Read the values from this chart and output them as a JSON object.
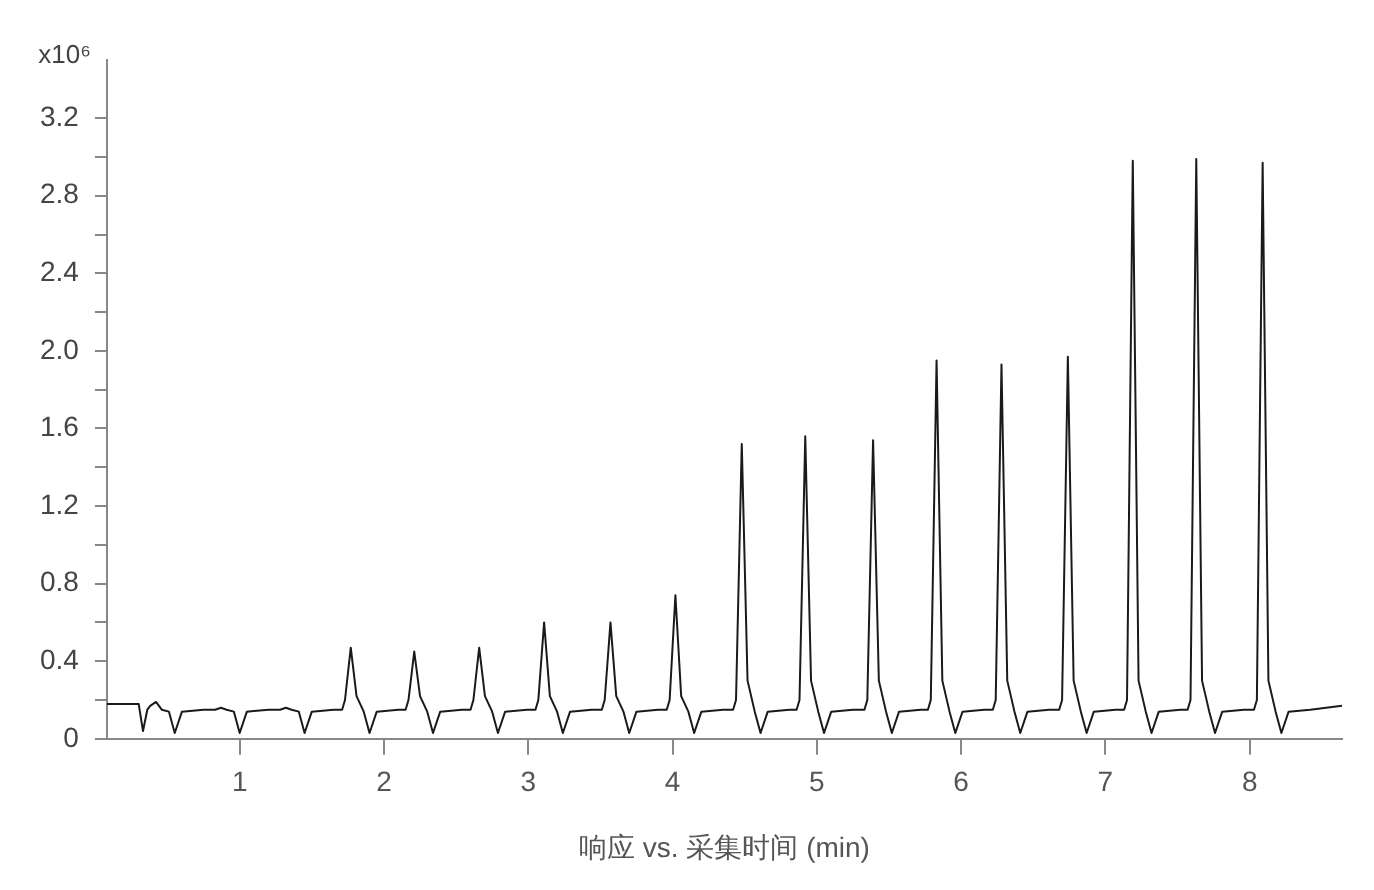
{
  "chart_data": {
    "type": "line",
    "xlabel": "响应 vs. 采集时间 (min)",
    "ylabel": "x10⁶",
    "xlim": [
      0.08,
      8.64
    ],
    "xticks": [
      1,
      2,
      3,
      4,
      5,
      6,
      7,
      8
    ],
    "ylim": [
      0,
      3.5
    ],
    "yticks": [
      0,
      {
        "value": 0.2,
        "label": null
      },
      0.4,
      {
        "value": 0.6,
        "label": null
      },
      0.8,
      {
        "value": 1,
        "label": null
      },
      1.2,
      {
        "value": 1.4,
        "label": null
      },
      1.6,
      {
        "value": 1.8,
        "label": null
      },
      {
        "value": 2,
        "label": "2.0"
      },
      {
        "value": 2.2,
        "label": null
      },
      2.4,
      {
        "value": 2.6,
        "label": null
      },
      2.8,
      {
        "value": 3,
        "label": null
      },
      3.2
    ],
    "grid": false,
    "legend": false,
    "series": [
      {
        "color": "#1a1a1a",
        "x": [
          0.08,
          0.3,
          0.33,
          0.36,
          0.38,
          0.42,
          0.46,
          0.51,
          0.55,
          0.6,
          0.75,
          0.81,
          0.83,
          0.87,
          0.91,
          0.96,
          1.0,
          1.05,
          1.2,
          1.26,
          1.28,
          1.32,
          1.36,
          1.41,
          1.45,
          1.5,
          1.65,
          1.71,
          1.73,
          1.77,
          1.81,
          1.86,
          1.9,
          1.95,
          2.1,
          2.15,
          2.17,
          2.21,
          2.25,
          2.3,
          2.34,
          2.39,
          2.54,
          2.6,
          2.62,
          2.66,
          2.7,
          2.75,
          2.79,
          2.84,
          2.99,
          3.05,
          3.07,
          3.11,
          3.15,
          3.2,
          3.24,
          3.29,
          3.44,
          3.51,
          3.53,
          3.57,
          3.61,
          3.66,
          3.7,
          3.75,
          3.9,
          3.96,
          3.98,
          4.02,
          4.06,
          4.11,
          4.15,
          4.2,
          4.35,
          4.42,
          4.44,
          4.48,
          4.52,
          4.57,
          4.61,
          4.66,
          4.81,
          4.86,
          4.88,
          4.92,
          4.96,
          5.01,
          5.05,
          5.1,
          5.25,
          5.33,
          5.35,
          5.39,
          5.43,
          5.48,
          5.52,
          5.57,
          5.72,
          5.77,
          5.79,
          5.83,
          5.87,
          5.92,
          5.96,
          6.01,
          6.16,
          6.22,
          6.24,
          6.28,
          6.32,
          6.37,
          6.41,
          6.46,
          6.61,
          6.68,
          6.7,
          6.74,
          6.78,
          6.83,
          6.87,
          6.92,
          7.07,
          7.13,
          7.15,
          7.19,
          7.23,
          7.28,
          7.32,
          7.37,
          7.52,
          7.57,
          7.59,
          7.63,
          7.67,
          7.72,
          7.76,
          7.81,
          7.96,
          8.03,
          8.05,
          8.09,
          8.13,
          8.18,
          8.22,
          8.27,
          8.42,
          8.64
        ],
        "values": [
          0.18,
          0.18,
          0.04,
          0.15,
          0.17,
          0.19,
          0.15,
          0.14,
          0.03,
          0.14,
          0.15,
          0.15,
          0.15,
          0.16,
          0.15,
          0.14,
          0.03,
          0.14,
          0.15,
          0.15,
          0.15,
          0.16,
          0.15,
          0.14,
          0.03,
          0.14,
          0.15,
          0.15,
          0.2,
          0.47,
          0.22,
          0.14,
          0.03,
          0.14,
          0.15,
          0.15,
          0.2,
          0.45,
          0.22,
          0.14,
          0.03,
          0.14,
          0.15,
          0.15,
          0.2,
          0.47,
          0.22,
          0.14,
          0.03,
          0.14,
          0.15,
          0.15,
          0.2,
          0.6,
          0.22,
          0.14,
          0.03,
          0.14,
          0.15,
          0.15,
          0.2,
          0.6,
          0.22,
          0.14,
          0.03,
          0.14,
          0.15,
          0.15,
          0.2,
          0.74,
          0.22,
          0.14,
          0.03,
          0.14,
          0.15,
          0.15,
          0.2,
          1.52,
          0.3,
          0.14,
          0.03,
          0.14,
          0.15,
          0.15,
          0.2,
          1.56,
          0.3,
          0.14,
          0.03,
          0.14,
          0.15,
          0.15,
          0.2,
          1.54,
          0.3,
          0.14,
          0.03,
          0.14,
          0.15,
          0.15,
          0.2,
          1.95,
          0.3,
          0.14,
          0.03,
          0.14,
          0.15,
          0.15,
          0.2,
          1.93,
          0.3,
          0.14,
          0.03,
          0.14,
          0.15,
          0.15,
          0.2,
          1.97,
          0.3,
          0.14,
          0.03,
          0.14,
          0.15,
          0.15,
          0.2,
          2.98,
          0.3,
          0.14,
          0.03,
          0.14,
          0.15,
          0.15,
          0.2,
          2.99,
          0.3,
          0.14,
          0.03,
          0.14,
          0.15,
          0.15,
          0.2,
          2.97,
          0.3,
          0.14,
          0.03,
          0.14,
          0.15,
          0.17
        ]
      }
    ]
  }
}
